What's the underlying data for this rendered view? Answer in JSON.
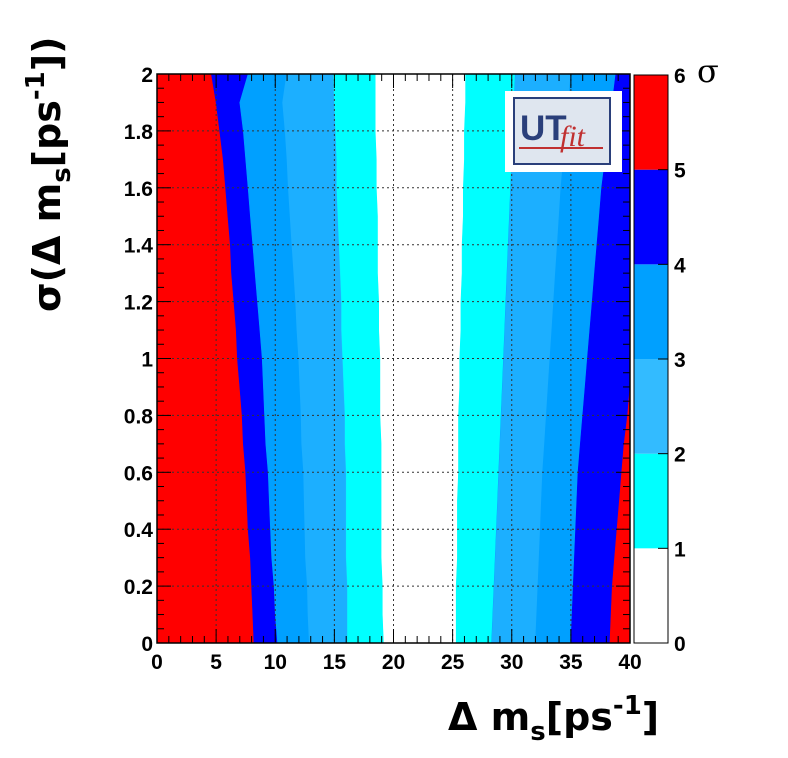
{
  "chart_data": {
    "type": "heatmap",
    "x_label": "Δ m",
    "x_label_sub": "s",
    "x_label_bracket": "[ps",
    "x_label_sup": "-1",
    "x_label_end": "]",
    "y_label": "σ(Δ m",
    "y_label_sub": "s",
    "y_label_bracket": "[ps",
    "y_label_sup": "-1",
    "y_label_end": "])",
    "colorbar_label": "σ",
    "xlim": [
      0,
      40
    ],
    "ylim": [
      0,
      2
    ],
    "x_ticks": [
      "0",
      "5",
      "10",
      "15",
      "20",
      "25",
      "30",
      "35",
      "40"
    ],
    "y_ticks": [
      "0",
      "0.2",
      "0.4",
      "0.6",
      "0.8",
      "1",
      "1.2",
      "1.4",
      "1.6",
      "1.8",
      "2"
    ],
    "colorbar_ticks": [
      "0",
      "1",
      "2",
      "3",
      "4",
      "5",
      "6"
    ],
    "levels": [
      {
        "from": 0,
        "to": 1,
        "color": "#ffffff"
      },
      {
        "from": 1,
        "to": 2,
        "color": "#00ffff"
      },
      {
        "from": 2,
        "to": 3,
        "color": "#33bbff"
      },
      {
        "from": 3,
        "to": 4,
        "color": "#00a0ff"
      },
      {
        "from": 4,
        "to": 5,
        "color": "#0000ff"
      },
      {
        "from": 5,
        "to": 6,
        "color": "#ff0000"
      }
    ],
    "contour_y": [
      0,
      0.1,
      0.2,
      0.3,
      0.4,
      0.5,
      0.6,
      0.7,
      0.8,
      0.9,
      1.0,
      1.1,
      1.2,
      1.3,
      1.4,
      1.5,
      1.6,
      1.7,
      1.8,
      1.9,
      2.0
    ],
    "contour_x": {
      "left_5": [
        8.2,
        8.1,
        8.0,
        7.9,
        7.7,
        7.6,
        7.5,
        7.3,
        7.2,
        7.0,
        6.8,
        6.7,
        6.5,
        6.3,
        6.2,
        6.0,
        5.8,
        5.6,
        5.3,
        5.0,
        4.6
      ],
      "left_4": [
        10.2,
        10.0,
        9.9,
        9.7,
        9.6,
        9.5,
        9.4,
        9.2,
        9.1,
        9.0,
        8.9,
        8.7,
        8.5,
        8.3,
        8.1,
        7.9,
        7.7,
        7.5,
        7.3,
        7.0,
        7.7
      ],
      "left_2": [
        16.1,
        16.1,
        16.1,
        16.0,
        16.0,
        16.0,
        16.0,
        15.9,
        15.9,
        15.8,
        15.7,
        15.6,
        15.6,
        15.5,
        15.4,
        15.3,
        15.2,
        15.2,
        15.1,
        15.0,
        14.9
      ],
      "left_1": [
        19.2,
        19.1,
        19.1,
        19.0,
        19.0,
        19.0,
        19.0,
        19.0,
        18.9,
        18.9,
        18.9,
        18.8,
        18.8,
        18.7,
        18.7,
        18.7,
        18.6,
        18.6,
        18.5,
        18.5,
        18.5
      ],
      "right_1": [
        25.3,
        25.3,
        25.3,
        25.4,
        25.4,
        25.4,
        25.5,
        25.5,
        25.5,
        25.6,
        25.6,
        25.7,
        25.7,
        25.8,
        25.8,
        25.9,
        25.9,
        26.0,
        26.0,
        26.1,
        26.1
      ],
      "right_2": [
        28.3,
        28.4,
        28.5,
        28.6,
        28.7,
        28.8,
        28.9,
        29.0,
        29.1,
        29.2,
        29.3,
        29.4,
        29.5,
        29.6,
        29.7,
        29.8,
        29.9,
        30.0,
        30.1,
        30.2,
        30.3
      ],
      "right_4": [
        35.0,
        35.1,
        35.2,
        35.3,
        35.4,
        35.5,
        35.6,
        35.8,
        36.0,
        36.2,
        36.4,
        36.6,
        36.8,
        37.0,
        37.2,
        37.4,
        37.6,
        37.9,
        38.2,
        38.5,
        38.8
      ],
      "right_5": [
        38.3,
        38.4,
        38.5,
        38.7,
        38.9,
        39.1,
        39.3,
        39.5,
        39.8,
        40.0,
        40.0,
        40.0,
        40.0,
        40.0,
        40.0,
        40.0,
        40.0,
        40.0,
        40.0,
        40.0,
        40.0
      ]
    },
    "logo": {
      "text_left": "UT",
      "text_right": "fit"
    }
  }
}
